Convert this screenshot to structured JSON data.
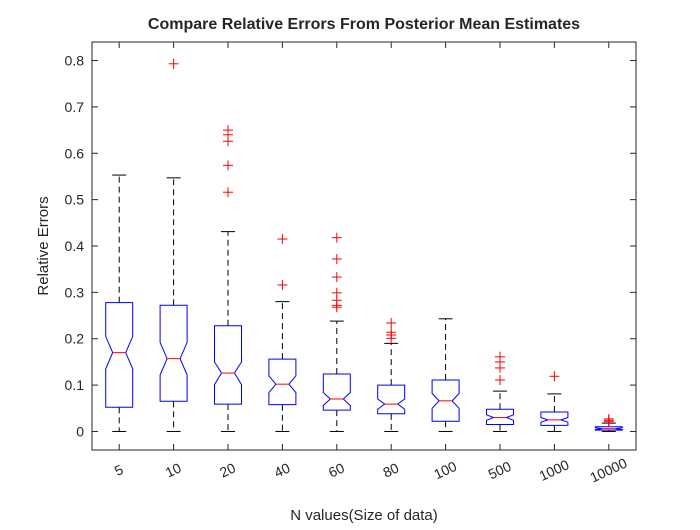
{
  "chart_data": {
    "type": "box",
    "title": "Compare Relative Errors From Posterior Mean Estimates",
    "xlabel": "N values(Size of data)",
    "ylabel": "Relative Errors",
    "ylim": [
      -0.04,
      0.84
    ],
    "yticks": [
      0,
      0.1,
      0.2,
      0.3,
      0.4,
      0.5,
      0.6,
      0.7,
      0.8
    ],
    "ytick_labels": [
      "0",
      "0.1",
      "0.2",
      "0.3",
      "0.4",
      "0.5",
      "0.6",
      "0.7",
      "0.8"
    ],
    "grid": false,
    "notched": true,
    "categories": [
      "5",
      "10",
      "20",
      "40",
      "60",
      "80",
      "100",
      "500",
      "1000",
      "10000"
    ],
    "boxes": [
      {
        "label": "5",
        "whisker_low": 0.0,
        "q1": 0.052,
        "median": 0.17,
        "q3": 0.278,
        "whisker_high": 0.553,
        "notch_low": 0.135,
        "notch_high": 0.205,
        "outliers": []
      },
      {
        "label": "10",
        "whisker_low": 0.0,
        "q1": 0.065,
        "median": 0.157,
        "q3": 0.272,
        "whisker_high": 0.547,
        "notch_low": 0.122,
        "notch_high": 0.192,
        "outliers": [
          0.793
        ]
      },
      {
        "label": "20",
        "whisker_low": 0.0,
        "q1": 0.059,
        "median": 0.126,
        "q3": 0.228,
        "whisker_high": 0.431,
        "notch_low": 0.101,
        "notch_high": 0.15,
        "outliers": [
          0.516,
          0.574,
          0.626,
          0.64,
          0.65
        ]
      },
      {
        "label": "40",
        "whisker_low": 0.0,
        "q1": 0.058,
        "median": 0.102,
        "q3": 0.156,
        "whisker_high": 0.28,
        "notch_low": 0.084,
        "notch_high": 0.12,
        "outliers": [
          0.316,
          0.415
        ]
      },
      {
        "label": "60",
        "whisker_low": 0.0,
        "q1": 0.046,
        "median": 0.07,
        "q3": 0.124,
        "whisker_high": 0.238,
        "notch_low": 0.056,
        "notch_high": 0.084,
        "outliers": [
          0.268,
          0.272,
          0.283,
          0.299,
          0.333,
          0.372,
          0.418
        ]
      },
      {
        "label": "80",
        "whisker_low": 0.0,
        "q1": 0.038,
        "median": 0.059,
        "q3": 0.1,
        "whisker_high": 0.19,
        "notch_low": 0.048,
        "notch_high": 0.07,
        "outliers": [
          0.201,
          0.208,
          0.214,
          0.234
        ]
      },
      {
        "label": "100",
        "whisker_low": 0.0,
        "q1": 0.022,
        "median": 0.066,
        "q3": 0.111,
        "whisker_high": 0.243,
        "notch_low": 0.05,
        "notch_high": 0.082,
        "outliers": []
      },
      {
        "label": "500",
        "whisker_low": 0.0,
        "q1": 0.015,
        "median": 0.03,
        "q3": 0.048,
        "whisker_high": 0.087,
        "notch_low": 0.024,
        "notch_high": 0.036,
        "outliers": [
          0.111,
          0.137,
          0.15,
          0.161
        ]
      },
      {
        "label": "1000",
        "whisker_low": 0.0,
        "q1": 0.013,
        "median": 0.025,
        "q3": 0.042,
        "whisker_high": 0.081,
        "notch_low": 0.02,
        "notch_high": 0.03,
        "outliers": [
          0.119
        ]
      },
      {
        "label": "10000",
        "whisker_low": 0.0,
        "q1": 0.003,
        "median": 0.006,
        "q3": 0.01,
        "whisker_high": 0.018,
        "notch_low": 0.004,
        "notch_high": 0.008,
        "outliers": [
          0.021,
          0.024,
          0.027
        ]
      }
    ],
    "colors": {
      "box": "#0000ff",
      "median": "#ff0000",
      "whisker": "#000000",
      "outlier": "#ff0000",
      "axes": "#262626"
    }
  }
}
